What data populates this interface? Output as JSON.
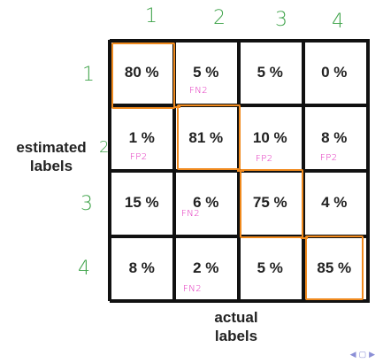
{
  "column_numbers": [
    "1",
    "2",
    "3",
    "4"
  ],
  "row_numbers": [
    "1",
    "2",
    "3",
    "4"
  ],
  "cells": [
    [
      "80 %",
      "5 %",
      "5 %",
      "0 %"
    ],
    [
      "1 %",
      "81 %",
      "10 %",
      "8 %"
    ],
    [
      "15 %",
      "6 %",
      "75 %",
      "4 %"
    ],
    [
      "8 %",
      "2 %",
      "5 %",
      "85 %"
    ]
  ],
  "annotations": {
    "r1c2": "FN2",
    "r2c1": "FP2",
    "r2c3": "FP2",
    "r2c4": "FP2",
    "r3c2": "FN2",
    "r4c2": "FN2"
  },
  "y_label": "estimated\nlabels",
  "x_label": "actual\nlabels",
  "colors": {
    "grid": "#111111",
    "highlight": "#f08a1e",
    "annotation": "#e020b8",
    "numbers": "#3fa34a"
  },
  "nav_icons": [
    "nav-left-icon",
    "nav-box-icon",
    "nav-right-icon"
  ]
}
